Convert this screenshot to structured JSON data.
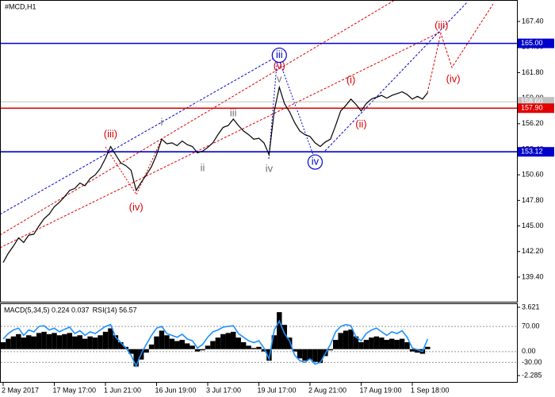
{
  "chart_data": [
    {
      "type": "line",
      "title": "#MCD,H1",
      "color": "#000000",
      "categories": [
        "2 May 2017",
        null,
        null,
        null,
        null,
        null,
        null,
        null,
        null,
        null,
        "17 May 17:00",
        null,
        null,
        null,
        null,
        null,
        null,
        null,
        null,
        null,
        "1 Jun 21:00",
        null,
        null,
        null,
        null,
        null,
        null,
        null,
        null,
        null,
        "16 Jun 19:00",
        null,
        null,
        null,
        null,
        null,
        null,
        null,
        null,
        null,
        "3 Jul 17:00",
        null,
        null,
        null,
        null,
        null,
        null,
        null,
        null,
        null,
        "19 Jul 17:00",
        null,
        null,
        null,
        null,
        null,
        null,
        null,
        null,
        null,
        "2 Aug 21:00",
        null,
        null,
        null,
        null,
        null,
        null,
        null,
        null,
        null,
        "17 Aug 19:00",
        null,
        null,
        null,
        null,
        null,
        null,
        null,
        null,
        null,
        "1 Sep 18:00",
        null,
        null,
        null
      ],
      "values": [
        141.0,
        142.0,
        142.8,
        143.7,
        143.2,
        144.0,
        144.1,
        145.0,
        145.8,
        146.3,
        147.1,
        147.6,
        148.2,
        148.9,
        149.1,
        149.7,
        149.4,
        150.2,
        150.6,
        151.3,
        152.4,
        153.7,
        152.8,
        151.9,
        151.6,
        151.1,
        148.9,
        149.8,
        150.6,
        151.5,
        152.8,
        154.5,
        154.0,
        154.1,
        153.8,
        154.3,
        153.9,
        153.7,
        153.0,
        153.2,
        153.6,
        154.1,
        155.0,
        155.8,
        156.0,
        156.7,
        156.0,
        155.4,
        155.0,
        154.5,
        154.6,
        154.1,
        152.8,
        157.6,
        160.2,
        158.4,
        157.5,
        156.3,
        155.4,
        155.0,
        154.8,
        154.1,
        153.7,
        154.2,
        154.5,
        156.0,
        157.6,
        158.2,
        158.9,
        158.3,
        157.6,
        158.4,
        158.9,
        159.1,
        159.3,
        159.0,
        159.3,
        159.5,
        159.7,
        159.4,
        158.9,
        159.2,
        158.9,
        159.6
      ],
      "ylim": [
        136.7,
        169.75
      ],
      "yticks": [
        {
          "value": 139.4,
          "label": "139.40"
        },
        {
          "value": 142.2,
          "label": "142.20"
        },
        {
          "value": 145,
          "label": "145.00"
        },
        {
          "value": 147.8,
          "label": "147.80"
        },
        {
          "value": 150.6,
          "label": "150.60"
        },
        {
          "value": 153.4,
          "label": "153.40"
        },
        {
          "value": 156.2,
          "label": "156.20"
        },
        {
          "value": 159,
          "label": "159.00"
        },
        {
          "value": 161.8,
          "label": "161.80"
        },
        {
          "value": 164.6,
          "label": "164.60"
        },
        {
          "value": 167.4,
          "label": "167.40"
        }
      ],
      "levels": [
        {
          "value": 165,
          "label": "165.00",
          "color": "#0000cd"
        },
        {
          "value": 158.6,
          "label": "158.60",
          "color": "#c0c0c0"
        },
        {
          "value": 157.9,
          "label": "157.90",
          "color": "#e00000"
        },
        {
          "value": 153.12,
          "label": "153.12",
          "color": "#0000cd"
        }
      ],
      "annotations": [
        {
          "text": "(iii)",
          "color": "#e00000",
          "x": 21,
          "y": 155.0,
          "circled": false
        },
        {
          "text": "(iv)",
          "color": "#e00000",
          "x": 26,
          "y": 147.0,
          "circled": false
        },
        {
          "text": "i",
          "color": "#707070",
          "x": 31,
          "y": 156.3,
          "circled": false
        },
        {
          "text": "ii",
          "color": "#707070",
          "x": 39,
          "y": 151.3,
          "circled": false
        },
        {
          "text": "iii",
          "color": "#707070",
          "x": 45,
          "y": 157.3,
          "circled": false
        },
        {
          "text": "iv",
          "color": "#707070",
          "x": 52,
          "y": 151.2,
          "circled": false
        },
        {
          "text": "v",
          "color": "#707070",
          "x": 54,
          "y": 161.05,
          "circled": false
        },
        {
          "text": "(v)",
          "color": "#e00000",
          "x": 54,
          "y": 162.5,
          "circled": false
        },
        {
          "text": "iii",
          "color": "#0000cd",
          "x": 54,
          "y": 163.7,
          "circled": true
        },
        {
          "text": "iv",
          "color": "#0000cd",
          "x": 61,
          "y": 152.0,
          "circled": true
        },
        {
          "text": "(i)",
          "color": "#e00000",
          "x": 68,
          "y": 160.9,
          "circled": false
        },
        {
          "text": "(ii)",
          "color": "#e00000",
          "x": 70,
          "y": 156.1,
          "circled": false
        },
        {
          "text": "(iii)",
          "color": "#e00000",
          "x": 85.7,
          "y": 166.9,
          "circled": false
        },
        {
          "text": "(iv)",
          "color": "#e00000",
          "x": 88,
          "y": 161.05,
          "circled": false
        }
      ]
    },
    {
      "type": "bar",
      "series": [
        {
          "name": "MACD(5,34,5) 0.224 0.037",
          "color": "#000000",
          "values": [
            0.6,
            0.9,
            1.1,
            1.3,
            1.0,
            1.2,
            1.1,
            1.4,
            1.5,
            1.3,
            1.4,
            1.2,
            1.3,
            1.4,
            1.1,
            1.2,
            0.9,
            1.1,
            1.0,
            1.2,
            1.5,
            1.8,
            1.2,
            0.6,
            0.2,
            -0.4,
            -1.5,
            -0.9,
            -0.3,
            0.4,
            1.1,
            1.6,
            1.2,
            0.9,
            0.7,
            0.8,
            0.5,
            0.3,
            -0.2,
            -0.1,
            0.3,
            0.7,
            1.0,
            1.3,
            1.4,
            1.5,
            1.0,
            0.6,
            0.3,
            0.1,
            0.2,
            -0.2,
            -1.0,
            1.2,
            3.2,
            2.1,
            1.0,
            -0.2,
            -0.8,
            -1.0,
            -0.9,
            -1.1,
            -1.2,
            -0.6,
            -0.1,
            0.8,
            1.4,
            1.6,
            1.7,
            1.1,
            0.6,
            0.8,
            1.0,
            1.1,
            1.0,
            0.8,
            0.9,
            0.8,
            0.9,
            0.6,
            -0.2,
            -0.3,
            -0.4,
            0.2
          ]
        },
        {
          "name": "RSI(14) 56.57",
          "color": "#1e90ff",
          "axis": "y2",
          "values": [
            35,
            50,
            60,
            65,
            45,
            60,
            55,
            70,
            72,
            60,
            65,
            55,
            62,
            68,
            50,
            58,
            45,
            55,
            50,
            60,
            70,
            75,
            40,
            25,
            10,
            -10,
            -40,
            -5,
            20,
            45,
            65,
            70,
            50,
            45,
            40,
            48,
            35,
            30,
            10,
            20,
            40,
            55,
            60,
            68,
            70,
            72,
            50,
            40,
            30,
            25,
            30,
            10,
            -20,
            60,
            85,
            50,
            30,
            -10,
            -25,
            -30,
            -20,
            -35,
            -30,
            -5,
            20,
            55,
            70,
            75,
            72,
            40,
            30,
            50,
            60,
            65,
            55,
            45,
            55,
            50,
            58,
            40,
            10,
            5,
            0,
            35
          ]
        }
      ],
      "ylim": [
        -2.285,
        3.621
      ],
      "yticks": [
        3.621,
        -2.285
      ],
      "y2lim": [
        -86.4,
        134.1
      ],
      "y2ticks": [
        {
          "value": 70,
          "label": "70.00"
        },
        {
          "value": 0,
          "label": "0.00"
        },
        {
          "value": -30,
          "label": "-30.00"
        }
      ],
      "grid": true
    }
  ]
}
